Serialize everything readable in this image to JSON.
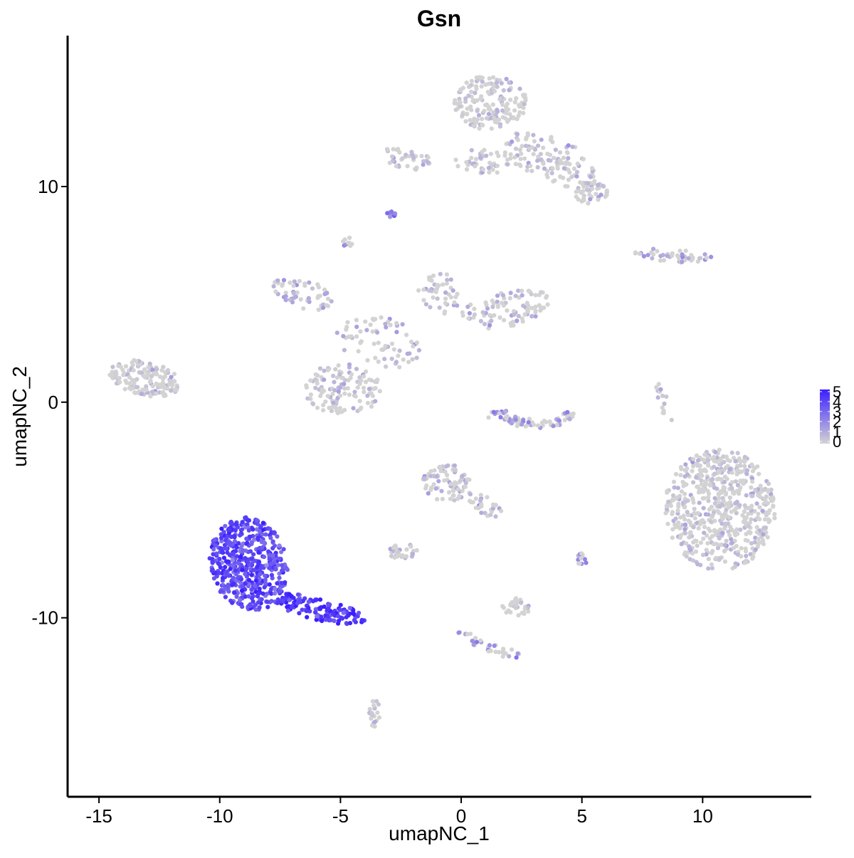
{
  "chart_data": {
    "type": "scatter",
    "title": "Gsn",
    "xlabel": "umapNC_1",
    "ylabel": "umapNC_2",
    "xlim": [
      -16.3,
      14.5
    ],
    "ylim": [
      -18.3,
      17.0
    ],
    "x_ticks": [
      -15,
      -10,
      -5,
      0,
      5,
      10
    ],
    "x_tick_labels": [
      "-15",
      "-10",
      "-5",
      "0",
      "5",
      "10"
    ],
    "y_ticks": [
      -10,
      0,
      10
    ],
    "y_tick_labels": [
      "-10",
      "0",
      "10"
    ],
    "grid": false,
    "legend": {
      "placement": "right",
      "type": "colorbar",
      "ticks": [
        0,
        1,
        2,
        3,
        4,
        5
      ],
      "tick_labels": [
        "0",
        "1",
        "2",
        "3",
        "4",
        "5"
      ],
      "low_color": "#d3d3d3",
      "high_color": "#3b1fff"
    },
    "expression_range": [
      0,
      5
    ],
    "clusters": [
      {
        "id": "top-cluster",
        "cx": 1.2,
        "cy": 13.9,
        "rx": 1.5,
        "ry": 1.3,
        "n": 170,
        "expr": 0.55,
        "rot": 0,
        "shape": "ellipse"
      },
      {
        "id": "top-cluster-arm",
        "cx": 3.8,
        "cy": 11.2,
        "rx": 2.3,
        "ry": 1.0,
        "n": 130,
        "expr": 0.6,
        "rot": -25,
        "shape": "ellipse"
      },
      {
        "id": "top-cluster-tail",
        "cx": 5.4,
        "cy": 9.7,
        "rx": 0.7,
        "ry": 0.5,
        "n": 40,
        "expr": 0.5,
        "rot": 0,
        "shape": "ellipse"
      },
      {
        "id": "top-cluster-bridge",
        "cx": 1.0,
        "cy": 11.2,
        "rx": 1.3,
        "ry": 0.6,
        "n": 45,
        "expr": 0.4,
        "rot": 0,
        "shape": "ellipse"
      },
      {
        "id": "top-left-small",
        "cx": -2.3,
        "cy": 11.3,
        "rx": 1.1,
        "ry": 0.5,
        "n": 40,
        "expr": 0.9,
        "rot": -10,
        "shape": "ellipse"
      },
      {
        "id": "small-1",
        "cx": -2.9,
        "cy": 8.7,
        "rx": 0.2,
        "ry": 0.15,
        "n": 10,
        "expr": 2.0,
        "rot": 0,
        "shape": "ellipse"
      },
      {
        "id": "small-2",
        "cx": -4.7,
        "cy": 7.4,
        "rx": 0.2,
        "ry": 0.25,
        "n": 12,
        "expr": 1.5,
        "rot": 0,
        "shape": "ellipse"
      },
      {
        "id": "right-upper-strip",
        "cx": 8.8,
        "cy": 6.8,
        "rx": 1.6,
        "ry": 0.3,
        "n": 45,
        "expr": 1.3,
        "rot": -5,
        "shape": "ellipse"
      },
      {
        "id": "middle-left-arm",
        "cx": -6.6,
        "cy": 5.0,
        "rx": 1.3,
        "ry": 0.7,
        "n": 55,
        "expr": 1.0,
        "rot": -18,
        "shape": "ellipse"
      },
      {
        "id": "middle-right-arm",
        "cx": 1.9,
        "cy": 4.3,
        "rx": 2.0,
        "ry": 0.8,
        "n": 95,
        "expr": 0.8,
        "rot": 12,
        "shape": "ellipse"
      },
      {
        "id": "middle-top",
        "cx": -0.9,
        "cy": 5.0,
        "rx": 0.9,
        "ry": 1.0,
        "n": 45,
        "expr": 0.6,
        "rot": 0,
        "shape": "ellipse"
      },
      {
        "id": "middle-center",
        "cx": -3.4,
        "cy": 2.8,
        "rx": 1.8,
        "ry": 1.2,
        "n": 70,
        "expr": 0.9,
        "rot": -20,
        "shape": "ellipse"
      },
      {
        "id": "middle-bottom",
        "cx": -4.9,
        "cy": 0.6,
        "rx": 1.6,
        "ry": 1.2,
        "n": 125,
        "expr": 0.6,
        "rot": 0,
        "shape": "ellipse"
      },
      {
        "id": "left-cluster",
        "cx": -13.1,
        "cy": 1.1,
        "rx": 1.5,
        "ry": 0.8,
        "n": 150,
        "expr": 0.4,
        "rot": -15,
        "shape": "ellipse"
      },
      {
        "id": "arc-cluster",
        "cx": 3.1,
        "cy": -0.6,
        "rx": 1.5,
        "ry": 0.5,
        "n": 70,
        "expr": 1.6,
        "rot": 0,
        "shape": "arc"
      },
      {
        "id": "thin-strand",
        "cx": 8.4,
        "cy": 0.0,
        "rx": 0.2,
        "ry": 1.0,
        "n": 16,
        "expr": 0.4,
        "rot": 15,
        "shape": "ellipse"
      },
      {
        "id": "right-big-cluster",
        "cx": 10.7,
        "cy": -5.0,
        "rx": 2.3,
        "ry": 2.8,
        "n": 600,
        "expr": 0.45,
        "rot": 0,
        "shape": "ellipse"
      },
      {
        "id": "center-lower",
        "cx": -0.6,
        "cy": -3.7,
        "rx": 1.0,
        "ry": 0.9,
        "n": 80,
        "expr": 0.9,
        "rot": 0,
        "shape": "ellipse"
      },
      {
        "id": "center-lower-tail",
        "cx": 1.0,
        "cy": -4.8,
        "rx": 0.9,
        "ry": 0.4,
        "n": 30,
        "expr": 0.8,
        "rot": -40,
        "shape": "ellipse"
      },
      {
        "id": "bottom-small-1",
        "cx": -2.5,
        "cy": -6.9,
        "rx": 0.7,
        "ry": 0.35,
        "n": 30,
        "expr": 0.6,
        "rot": 0,
        "shape": "ellipse"
      },
      {
        "id": "bottom-small-2",
        "cx": 5.0,
        "cy": -7.3,
        "rx": 0.2,
        "ry": 0.3,
        "n": 12,
        "expr": 1.5,
        "rot": 0,
        "shape": "ellipse"
      },
      {
        "id": "bottom-small-3",
        "cx": 2.3,
        "cy": -9.5,
        "rx": 0.6,
        "ry": 0.4,
        "n": 30,
        "expr": 0.4,
        "rot": 0,
        "shape": "ellipse"
      },
      {
        "id": "bottom-strand",
        "cx": 1.2,
        "cy": -11.3,
        "rx": 1.6,
        "ry": 0.3,
        "n": 40,
        "expr": 1.7,
        "rot": -25,
        "shape": "ellipse"
      },
      {
        "id": "bottom-small-4",
        "cx": -3.6,
        "cy": -14.5,
        "rx": 0.25,
        "ry": 0.7,
        "n": 22,
        "expr": 0.4,
        "rot": 0,
        "shape": "ellipse"
      },
      {
        "id": "high-expr-cluster",
        "cx": -8.8,
        "cy": -7.5,
        "rx": 1.6,
        "ry": 2.2,
        "n": 520,
        "expr": 3.8,
        "rot": 10,
        "shape": "ellipse"
      },
      {
        "id": "high-expr-tail",
        "cx": -5.9,
        "cy": -9.6,
        "rx": 2.0,
        "ry": 0.5,
        "n": 150,
        "expr": 4.3,
        "rot": -15,
        "shape": "ellipse"
      }
    ]
  }
}
